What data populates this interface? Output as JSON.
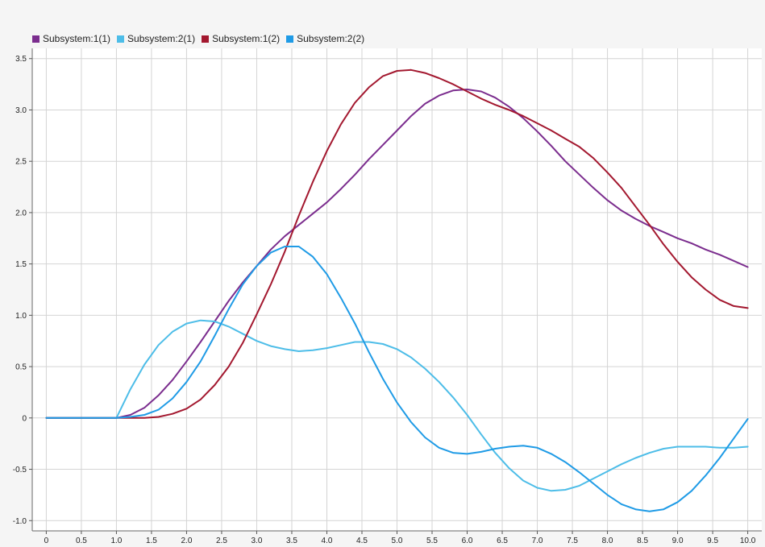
{
  "chart_data": {
    "type": "line",
    "title": "",
    "xlabel": "",
    "ylabel": "",
    "xlim": [
      -0.2,
      10.2
    ],
    "ylim": [
      -1.1,
      3.6
    ],
    "grid": true,
    "legend_position": "top-left",
    "x_ticks": [
      "0",
      "0.5",
      "1.0",
      "1.5",
      "2.0",
      "2.5",
      "3.0",
      "3.5",
      "4.0",
      "4.5",
      "5.0",
      "5.5",
      "6.0",
      "6.5",
      "7.0",
      "7.5",
      "8.0",
      "8.5",
      "9.0",
      "9.5",
      "10.0"
    ],
    "y_ticks": [
      "3.5",
      "3.0",
      "2.5",
      "2.0",
      "1.5",
      "1.0",
      "0.5",
      "0",
      "-0.5",
      "-1.0"
    ],
    "x_tick_values": [
      0,
      0.5,
      1,
      1.5,
      2,
      2.5,
      3,
      3.5,
      4,
      4.5,
      5,
      5.5,
      6,
      6.5,
      7,
      7.5,
      8,
      8.5,
      9,
      9.5,
      10
    ],
    "y_tick_values": [
      3.5,
      3,
      2.5,
      2,
      1.5,
      1,
      0.5,
      0,
      -0.5,
      -1
    ],
    "series": [
      {
        "name": "Subsystem:1(1)",
        "color": "#7b2d8e",
        "x": [
          0,
          1.0,
          1.2,
          1.4,
          1.6,
          1.8,
          2.0,
          2.2,
          2.4,
          2.6,
          2.8,
          3.0,
          3.2,
          3.4,
          3.6,
          3.8,
          4.0,
          4.2,
          4.4,
          4.6,
          4.8,
          5.0,
          5.2,
          5.4,
          5.6,
          5.8,
          6.0,
          6.2,
          6.4,
          6.6,
          6.8,
          7.0,
          7.2,
          7.4,
          7.6,
          7.8,
          8.0,
          8.2,
          8.4,
          8.6,
          8.8,
          9.0,
          9.2,
          9.4,
          9.6,
          9.8,
          10.0
        ],
        "y": [
          0,
          0,
          0.03,
          0.1,
          0.22,
          0.37,
          0.55,
          0.74,
          0.94,
          1.14,
          1.32,
          1.48,
          1.64,
          1.77,
          1.88,
          1.99,
          2.1,
          2.23,
          2.37,
          2.52,
          2.66,
          2.8,
          2.94,
          3.06,
          3.14,
          3.19,
          3.2,
          3.18,
          3.12,
          3.03,
          2.92,
          2.79,
          2.65,
          2.5,
          2.37,
          2.24,
          2.12,
          2.02,
          1.94,
          1.87,
          1.81,
          1.75,
          1.7,
          1.64,
          1.59,
          1.53,
          1.47
        ]
      },
      {
        "name": "Subsystem:2(1)",
        "color": "#4dbde8",
        "x": [
          0,
          1.0,
          1.2,
          1.4,
          1.6,
          1.8,
          2.0,
          2.2,
          2.4,
          2.6,
          2.8,
          3.0,
          3.2,
          3.4,
          3.6,
          3.8,
          4.0,
          4.2,
          4.4,
          4.6,
          4.8,
          5.0,
          5.2,
          5.4,
          5.6,
          5.8,
          6.0,
          6.2,
          6.4,
          6.6,
          6.8,
          7.0,
          7.2,
          7.4,
          7.6,
          7.8,
          8.0,
          8.2,
          8.4,
          8.6,
          8.8,
          9.0,
          9.2,
          9.4,
          9.6,
          9.8,
          10.0
        ],
        "y": [
          0,
          0,
          0.28,
          0.52,
          0.71,
          0.84,
          0.92,
          0.95,
          0.94,
          0.89,
          0.82,
          0.75,
          0.7,
          0.67,
          0.65,
          0.66,
          0.68,
          0.71,
          0.74,
          0.74,
          0.72,
          0.67,
          0.59,
          0.48,
          0.35,
          0.2,
          0.03,
          -0.16,
          -0.34,
          -0.49,
          -0.61,
          -0.68,
          -0.71,
          -0.7,
          -0.66,
          -0.59,
          -0.52,
          -0.45,
          -0.39,
          -0.34,
          -0.3,
          -0.28,
          -0.28,
          -0.28,
          -0.29,
          -0.29,
          -0.28
        ]
      },
      {
        "name": "Subsystem:1(2)",
        "color": "#a3182f",
        "x": [
          0,
          1.0,
          1.2,
          1.4,
          1.6,
          1.8,
          2.0,
          2.2,
          2.4,
          2.6,
          2.8,
          3.0,
          3.2,
          3.4,
          3.6,
          3.8,
          4.0,
          4.2,
          4.4,
          4.6,
          4.8,
          5.0,
          5.2,
          5.4,
          5.6,
          5.8,
          6.0,
          6.2,
          6.4,
          6.6,
          6.8,
          7.0,
          7.2,
          7.4,
          7.6,
          7.8,
          8.0,
          8.2,
          8.4,
          8.6,
          8.8,
          9.0,
          9.2,
          9.4,
          9.6,
          9.8,
          10.0
        ],
        "y": [
          0,
          0,
          0,
          0,
          0.01,
          0.04,
          0.09,
          0.18,
          0.32,
          0.5,
          0.73,
          1.01,
          1.3,
          1.62,
          1.97,
          2.3,
          2.6,
          2.86,
          3.07,
          3.22,
          3.33,
          3.38,
          3.39,
          3.36,
          3.31,
          3.25,
          3.18,
          3.11,
          3.05,
          3.0,
          2.94,
          2.87,
          2.8,
          2.72,
          2.64,
          2.53,
          2.39,
          2.24,
          2.06,
          1.88,
          1.69,
          1.52,
          1.37,
          1.25,
          1.15,
          1.09,
          1.07
        ]
      },
      {
        "name": "Subsystem:2(2)",
        "color": "#1f9be6",
        "x": [
          0,
          1.0,
          1.2,
          1.4,
          1.6,
          1.8,
          2.0,
          2.2,
          2.4,
          2.6,
          2.8,
          3.0,
          3.2,
          3.4,
          3.6,
          3.8,
          4.0,
          4.2,
          4.4,
          4.6,
          4.8,
          5.0,
          5.2,
          5.4,
          5.6,
          5.8,
          6.0,
          6.2,
          6.4,
          6.6,
          6.8,
          7.0,
          7.2,
          7.4,
          7.6,
          7.8,
          8.0,
          8.2,
          8.4,
          8.6,
          8.8,
          9.0,
          9.2,
          9.4,
          9.6,
          9.8,
          10.0
        ],
        "y": [
          0,
          0,
          0.01,
          0.03,
          0.08,
          0.19,
          0.35,
          0.55,
          0.8,
          1.06,
          1.3,
          1.48,
          1.61,
          1.67,
          1.67,
          1.57,
          1.4,
          1.17,
          0.92,
          0.64,
          0.38,
          0.15,
          -0.04,
          -0.19,
          -0.29,
          -0.34,
          -0.35,
          -0.33,
          -0.3,
          -0.28,
          -0.27,
          -0.29,
          -0.35,
          -0.43,
          -0.53,
          -0.64,
          -0.75,
          -0.84,
          -0.89,
          -0.91,
          -0.89,
          -0.82,
          -0.71,
          -0.56,
          -0.39,
          -0.2,
          -0.01
        ]
      }
    ]
  }
}
